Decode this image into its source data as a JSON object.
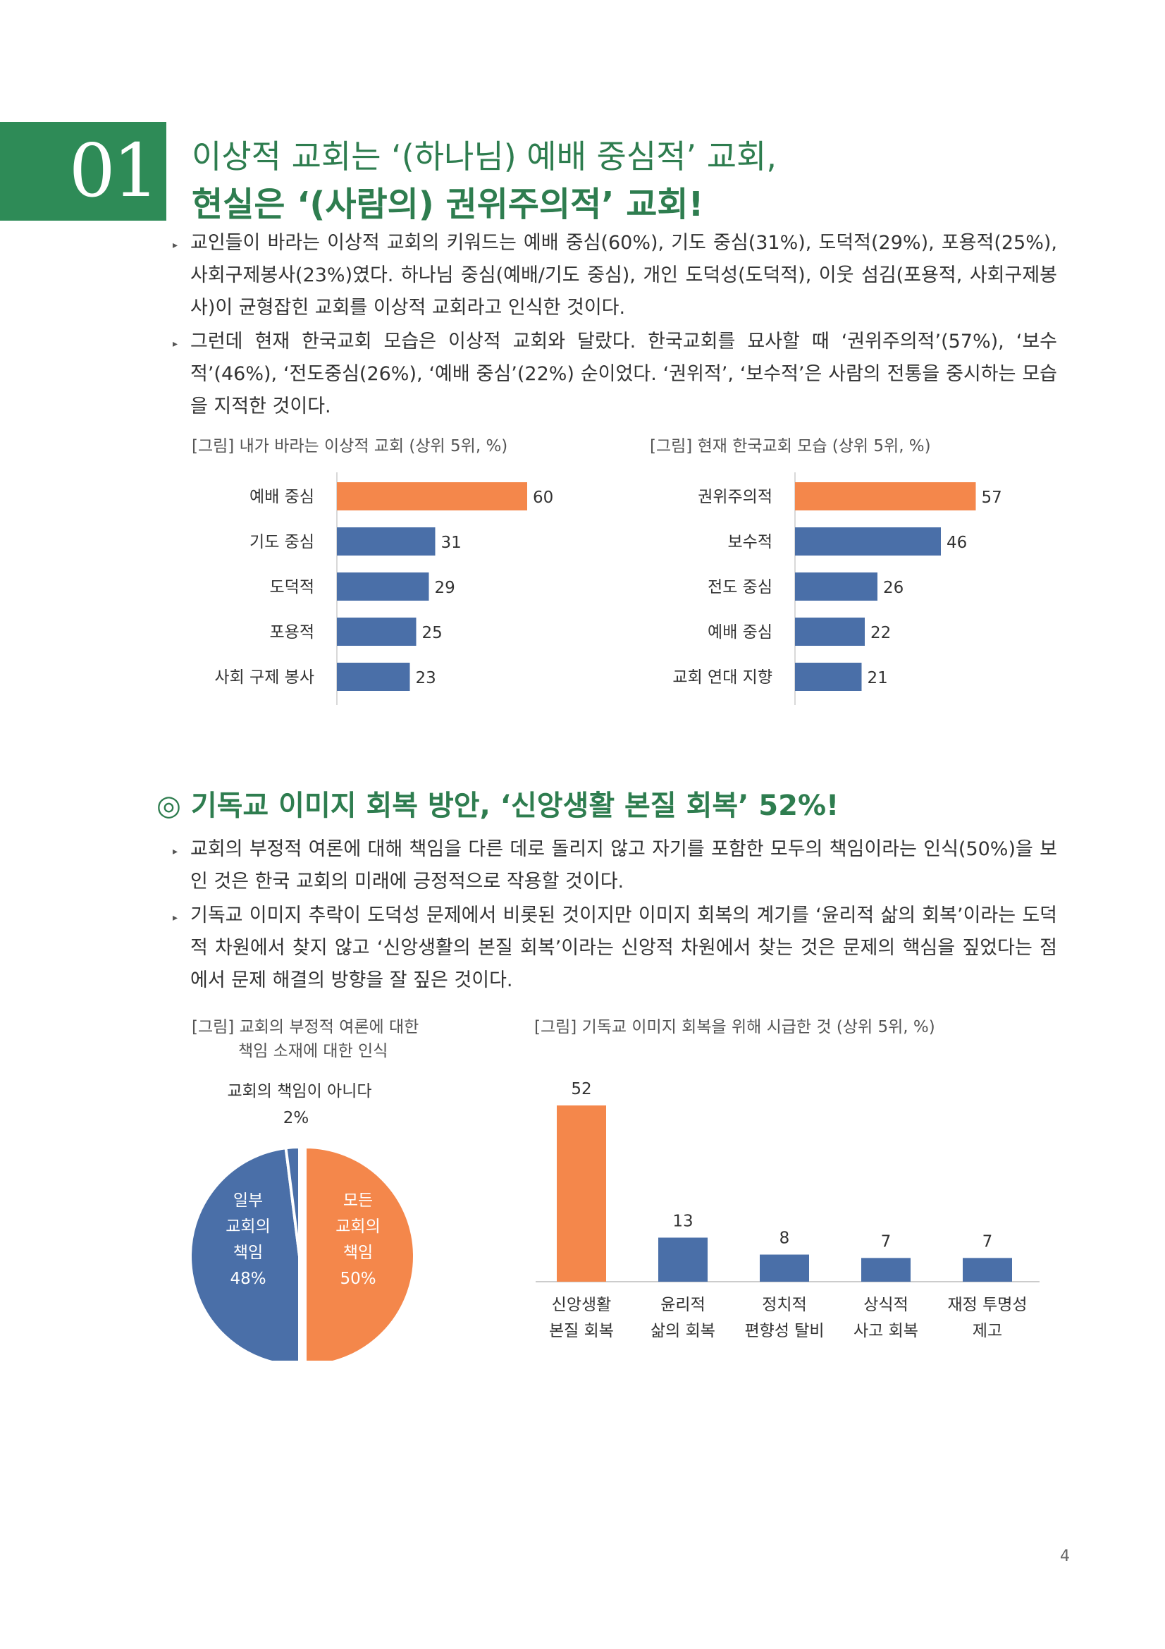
{
  "header": {
    "number": "01",
    "title_line1": "이상적 교회는 ‘(하나님) 예배 중심적’ 교회,",
    "title_line2": "현실은 ‘(사람의) 권위주의적’ 교회!"
  },
  "section1": {
    "paragraphs": [
      "교인들이 바라는 이상적 교회의 키워드는 예배 중심(60%), 기도 중심(31%), 도덕적(29%), 포용적(25%), 사회구제봉사(23%)였다. 하나님 중심(예배/기도 중심), 개인 도덕성(도덕적), 이웃 섬김(포용적, 사회구제봉사)이 균형잡힌 교회를 이상적 교회라고 인식한 것이다.",
      "그런데 현재 한국교회 모습은 이상적 교회와 달랐다. 한국교회를 묘사할 때 ‘권위주의적’(57%), ‘보수적’(46%), ‘전도중심(26%), ‘예배 중심’(22%) 순이었다. ‘권위적’, ‘보수적’은 사람의 전통을 중시하는 모습을 지적한 것이다."
    ]
  },
  "section2": {
    "heading": "◎ 기독교 이미지 회복 방안, ‘신앙생활 본질 회복’ 52%!",
    "paragraphs": [
      "교회의 부정적 여론에 대해 책임을 다른 데로 돌리지 않고 자기를 포함한 모두의 책임이라는 인식(50%)을 보인 것은 한국 교회의 미래에 긍정적으로 작용할 것이다.",
      "기독교 이미지 추락이 도덕성 문제에서 비롯된 것이지만 이미지 회복의 계기를 ‘윤리적 삶의 회복’이라는 도덕적 차원에서 찾지 않고 ‘신앙생활의 본질 회복’이라는 신앙적 차원에서 찾는 것은 문제의 핵심을 짚었다는 점에서 문제 해결의 방향을 잘 짚은 것이다."
    ]
  },
  "chart_data": [
    {
      "type": "bar",
      "orientation": "horizontal",
      "title": "[그림] 내가 바라는 이상적 교회 (상위 5위, %)",
      "categories": [
        "예배 중심",
        "기도 중심",
        "도덕적",
        "포용적",
        "사회 구제 봉사"
      ],
      "values": [
        60,
        31,
        29,
        25,
        23
      ],
      "highlight_color": "#f4874b",
      "bar_color": "#4a6fa8",
      "xlim": [
        0,
        100
      ]
    },
    {
      "type": "bar",
      "orientation": "horizontal",
      "title": "[그림] 현재 한국교회 모습 (상위 5위, %)",
      "categories": [
        "권위주의적",
        "보수적",
        "전도 중심",
        "예배 중심",
        "교회 연대 지향"
      ],
      "values": [
        57,
        46,
        26,
        22,
        21
      ],
      "highlight_color": "#f4874b",
      "bar_color": "#4a6fa8",
      "xlim": [
        0,
        100
      ]
    },
    {
      "type": "pie",
      "title_line1": "[그림] 교회의 부정적 여론에 대한",
      "title_line2": "책임 소재에 대한 인식",
      "slices": [
        {
          "label_lines": [
            "모든",
            "교회의",
            "책임"
          ],
          "value": 50,
          "value_label": "50%",
          "color": "#f4874b"
        },
        {
          "label_lines": [
            "일부",
            "교회의",
            "책임"
          ],
          "value": 48,
          "value_label": "48%",
          "color": "#4a6fa8"
        },
        {
          "label_lines": [
            "교회의 책임이 아니다"
          ],
          "value": 2,
          "value_label": "2%",
          "color": "#4a6fa8"
        }
      ]
    },
    {
      "type": "bar",
      "orientation": "vertical",
      "title": "[그림] 기독교 이미지 회복을 위해 시급한 것 (상위 5위, %)",
      "categories": [
        [
          "신앙생활",
          "본질 회복"
        ],
        [
          "윤리적",
          "삶의 회복"
        ],
        [
          "정치적",
          "편향성 탈비"
        ],
        [
          "상식적",
          "사고 회복"
        ],
        [
          "재정 투명성",
          "제고"
        ]
      ],
      "values": [
        52,
        13,
        8,
        7,
        7
      ],
      "highlight_color": "#f4874b",
      "bar_color": "#4a6fa8",
      "ylim": [
        0,
        52
      ]
    }
  ],
  "footer": {
    "page_number": "4"
  }
}
